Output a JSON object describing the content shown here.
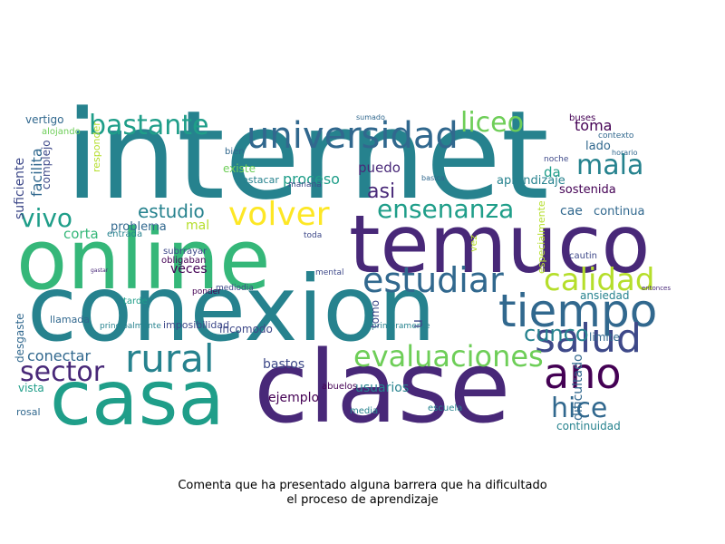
{
  "caption": {
    "line1": "Comenta que ha presentado alguna barrera que ha dificultado",
    "line2": "el proceso de aprendizaje"
  },
  "colors": {
    "background": "#ffffff",
    "palette": [
      "#440154",
      "#482878",
      "#3e4989",
      "#31688e",
      "#26828e",
      "#1f9e89",
      "#35b779",
      "#6ece58",
      "#b5de2b",
      "#fde725"
    ]
  },
  "words": [
    {
      "text": "internet",
      "size": 135,
      "color": "#26828e",
      "rotate": false
    },
    {
      "text": "online",
      "size": 92,
      "color": "#35b779",
      "rotate": false
    },
    {
      "text": "temuco",
      "size": 88,
      "color": "#482878",
      "rotate": false
    },
    {
      "text": "conexion",
      "size": 100,
      "color": "#26828e",
      "rotate": false
    },
    {
      "text": "clase",
      "size": 110,
      "color": "#482878",
      "rotate": false
    },
    {
      "text": "casa",
      "size": 84,
      "color": "#1f9e89",
      "rotate": false
    },
    {
      "text": "universidad",
      "size": 40,
      "color": "#31688e",
      "rotate": false
    },
    {
      "text": "bastante",
      "size": 30,
      "color": "#1f9e89",
      "rotate": false
    },
    {
      "text": "liceo",
      "size": 30,
      "color": "#6ece58",
      "rotate": false
    },
    {
      "text": "mala",
      "size": 30,
      "color": "#26828e",
      "rotate": false
    },
    {
      "text": "volver",
      "size": 36,
      "color": "#fde725",
      "rotate": false
    },
    {
      "text": "vivo",
      "size": 28,
      "color": "#1f9e89",
      "rotate": false
    },
    {
      "text": "ensenanza",
      "size": 28,
      "color": "#1f9e89",
      "rotate": false
    },
    {
      "text": "estudiar",
      "size": 38,
      "color": "#31688e",
      "rotate": false
    },
    {
      "text": "calidad",
      "size": 34,
      "color": "#b5de2b",
      "rotate": false
    },
    {
      "text": "tiempo",
      "size": 50,
      "color": "#31688e",
      "rotate": false
    },
    {
      "text": "rural",
      "size": 42,
      "color": "#26828e",
      "rotate": false
    },
    {
      "text": "sector",
      "size": 30,
      "color": "#482878",
      "rotate": false
    },
    {
      "text": "salud",
      "size": 44,
      "color": "#3e4989",
      "rotate": false
    },
    {
      "text": "ano",
      "size": 46,
      "color": "#440154",
      "rotate": false
    },
    {
      "text": "hice",
      "size": 30,
      "color": "#31688e",
      "rotate": false
    },
    {
      "text": "evaluaciones",
      "size": 32,
      "color": "#6ece58",
      "rotate": false
    },
    {
      "text": "cunco",
      "size": 24,
      "color": "#26828e",
      "rotate": false
    },
    {
      "text": "estudio",
      "size": 20,
      "color": "#26828e",
      "rotate": false
    },
    {
      "text": "toma",
      "size": 16,
      "color": "#440154",
      "rotate": false
    },
    {
      "text": "lado",
      "size": 13,
      "color": "#31688e",
      "rotate": false
    },
    {
      "text": "puedo",
      "size": 15,
      "color": "#482878",
      "rotate": false
    },
    {
      "text": "asi",
      "size": 22,
      "color": "#482878",
      "rotate": false
    },
    {
      "text": "proceso",
      "size": 16,
      "color": "#1f9e89",
      "rotate": false
    },
    {
      "text": "corta",
      "size": 15,
      "color": "#35b779",
      "rotate": false
    },
    {
      "text": "da",
      "size": 15,
      "color": "#1f9e89",
      "rotate": false
    },
    {
      "text": "sostenida",
      "size": 13,
      "color": "#440154",
      "rotate": false
    },
    {
      "text": "aprendizaje",
      "size": 13,
      "color": "#26828e",
      "rotate": false
    },
    {
      "text": "cae",
      "size": 14,
      "color": "#31688e",
      "rotate": false
    },
    {
      "text": "continua",
      "size": 13,
      "color": "#31688e",
      "rotate": false
    },
    {
      "text": "problema",
      "size": 13,
      "color": "#31688e",
      "rotate": false
    },
    {
      "text": "mal",
      "size": 14,
      "color": "#b5de2b",
      "rotate": false
    },
    {
      "text": "existe",
      "size": 12,
      "color": "#6ece58",
      "rotate": false
    },
    {
      "text": "destacar",
      "size": 11,
      "color": "#26828e",
      "rotate": false
    },
    {
      "text": "veces",
      "size": 14,
      "color": "#440154",
      "rotate": false
    },
    {
      "text": "conectar",
      "size": 16,
      "color": "#31688e",
      "rotate": false
    },
    {
      "text": "bastos",
      "size": 14,
      "color": "#3e4989",
      "rotate": false
    },
    {
      "text": "ejemplo",
      "size": 14,
      "color": "#440154",
      "rotate": false
    },
    {
      "text": "usuarios",
      "size": 14,
      "color": "#26828e",
      "rotate": false
    },
    {
      "text": "incomodo",
      "size": 12,
      "color": "#3e4989",
      "rotate": false
    },
    {
      "text": "ansiedad",
      "size": 12,
      "color": "#26828e",
      "rotate": false
    },
    {
      "text": "limite",
      "size": 12,
      "color": "#31688e",
      "rotate": false
    },
    {
      "text": "vista",
      "size": 12,
      "color": "#1f9e89",
      "rotate": false
    },
    {
      "text": "rosal",
      "size": 11,
      "color": "#31688e",
      "rotate": false
    },
    {
      "text": "continuidad",
      "size": 12,
      "color": "#26828e",
      "rotate": false
    },
    {
      "text": "vertigo",
      "size": 12,
      "color": "#31688e",
      "rotate": false
    },
    {
      "text": "llamada",
      "size": 11,
      "color": "#31688e",
      "rotate": false
    },
    {
      "text": "imposibilidad",
      "size": 11,
      "color": "#3e4989",
      "rotate": false
    },
    {
      "text": "obligaban",
      "size": 10,
      "color": "#440154",
      "rotate": false
    },
    {
      "text": "entrada",
      "size": 10,
      "color": "#26828e",
      "rotate": false
    },
    {
      "text": "tarde",
      "size": 10,
      "color": "#1f9e89",
      "rotate": false
    },
    {
      "text": "cautin",
      "size": 10,
      "color": "#3e4989",
      "rotate": false
    },
    {
      "text": "escuela",
      "size": 10,
      "color": "#26828e",
      "rotate": false
    },
    {
      "text": "media",
      "size": 10,
      "color": "#26828e",
      "rotate": false
    },
    {
      "text": "abuelos",
      "size": 10,
      "color": "#440154",
      "rotate": false
    },
    {
      "text": "buses",
      "size": 10,
      "color": "#440154",
      "rotate": false
    },
    {
      "text": "contexto",
      "size": 9,
      "color": "#31688e",
      "rotate": false
    },
    {
      "text": "horario",
      "size": 8,
      "color": "#31688e",
      "rotate": false
    },
    {
      "text": "alojando",
      "size": 10,
      "color": "#6ece58",
      "rotate": false
    },
    {
      "text": "bien",
      "size": 10,
      "color": "#31688e",
      "rotate": false
    },
    {
      "text": "mediodia",
      "size": 9,
      "color": "#3e4989",
      "rotate": false
    },
    {
      "text": "subrrayar",
      "size": 10,
      "color": "#3e4989",
      "rotate": false
    },
    {
      "text": "manana",
      "size": 9,
      "color": "#3e4989",
      "rotate": false
    },
    {
      "text": "principalmente",
      "size": 9,
      "color": "#26828e",
      "rotate": false
    },
    {
      "text": "primeramente",
      "size": 9,
      "color": "#26828e",
      "rotate": false
    },
    {
      "text": "noche",
      "size": 9,
      "color": "#3e4989",
      "rotate": false
    },
    {
      "text": "toda",
      "size": 9,
      "color": "#3e4989",
      "rotate": false
    },
    {
      "text": "mental",
      "size": 9,
      "color": "#3e4989",
      "rotate": false
    },
    {
      "text": "ponder",
      "size": 9,
      "color": "#440154",
      "rotate": false
    },
    {
      "text": "sumado",
      "size": 8,
      "color": "#31688e",
      "rotate": false
    },
    {
      "text": "basica",
      "size": 8,
      "color": "#31688e",
      "rotate": false
    },
    {
      "text": "entonces",
      "size": 7,
      "color": "#482878",
      "rotate": false
    },
    {
      "text": "gastar",
      "size": 6,
      "color": "#482878",
      "rotate": false
    },
    {
      "text": "suficiente",
      "size": 14,
      "color": "#3e4989",
      "rotate": true
    },
    {
      "text": "facilita",
      "size": 16,
      "color": "#31688e",
      "rotate": true
    },
    {
      "text": "complejo",
      "size": 12,
      "color": "#3e4989",
      "rotate": true
    },
    {
      "text": "responder",
      "size": 11,
      "color": "#b5de2b",
      "rotate": true
    },
    {
      "text": "especialmente",
      "size": 11,
      "color": "#b5de2b",
      "rotate": true
    },
    {
      "text": "dificultado",
      "size": 14,
      "color": "#31688e",
      "rotate": true
    },
    {
      "text": "tomo",
      "size": 12,
      "color": "#3e4989",
      "rotate": true
    },
    {
      "text": "desgaste",
      "size": 12,
      "color": "#31688e",
      "rotate": true
    },
    {
      "text": "u",
      "size": 16,
      "color": "#3e4989",
      "rotate": true
    },
    {
      "text": "vez",
      "size": 11,
      "color": "#b5de2b",
      "rotate": true
    }
  ]
}
